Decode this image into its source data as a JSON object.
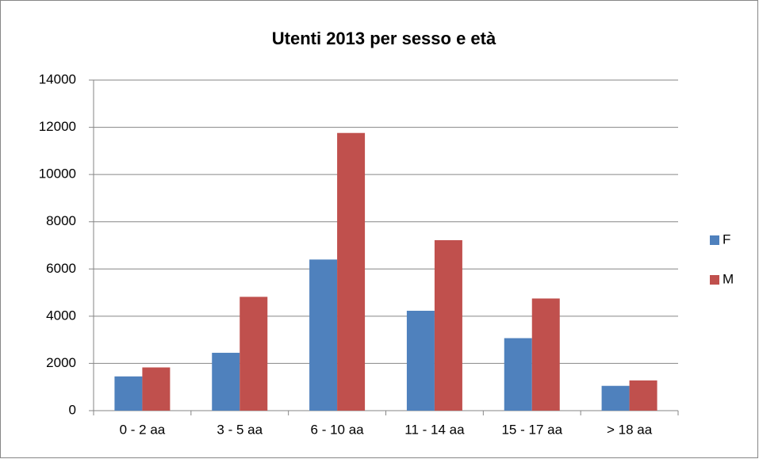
{
  "chart_data": {
    "type": "bar",
    "title": "Utenti 2013 per sesso e età",
    "categories": [
      "0 - 2 aa",
      "3 - 5 aa",
      "6 - 10 aa",
      "11 - 14 aa",
      "15 - 17 aa",
      "> 18 aa"
    ],
    "series": [
      {
        "name": "F",
        "color": "#4f81bd",
        "values": [
          1450,
          2450,
          6400,
          4230,
          3070,
          1050
        ]
      },
      {
        "name": "M",
        "color": "#c0504d",
        "values": [
          1830,
          4820,
          11760,
          7220,
          4750,
          1280
        ]
      }
    ],
    "ylim": [
      0,
      14000
    ],
    "yticks": [
      0,
      2000,
      4000,
      6000,
      8000,
      10000,
      12000,
      14000
    ],
    "grid": true,
    "legend": "right"
  }
}
